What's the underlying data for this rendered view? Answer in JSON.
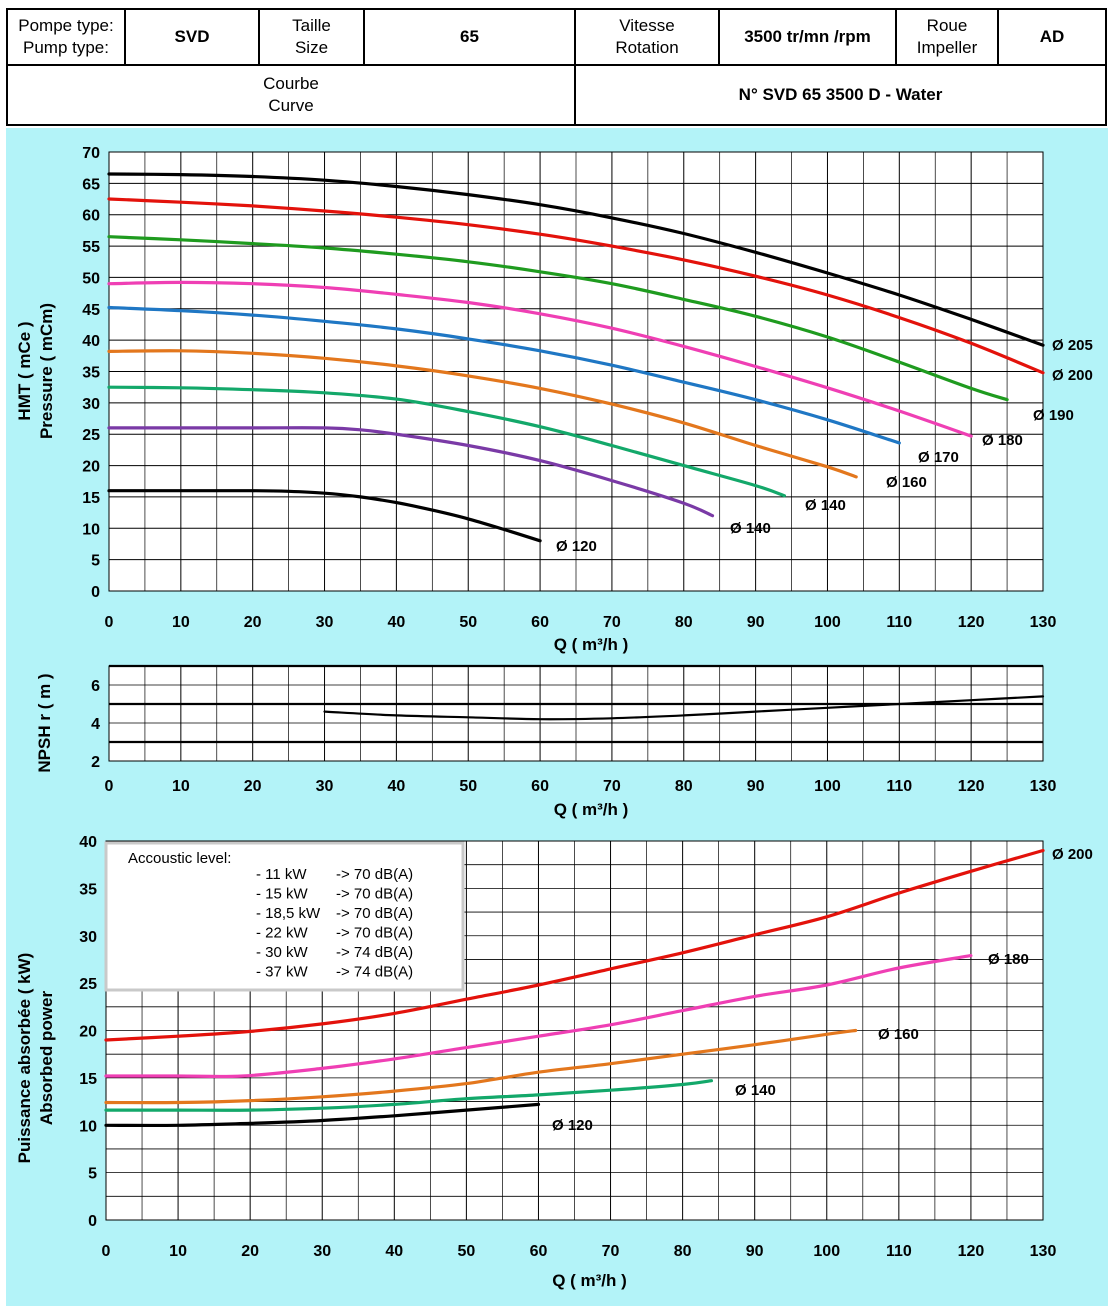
{
  "header": {
    "pump_type_label_fr": "Pompe type:",
    "pump_type_label_en": "Pump type:",
    "pump_type_value": "SVD",
    "size_label_fr": "Taille",
    "size_label_en": "Size",
    "size_value": "65",
    "speed_label_fr": "Vitesse",
    "speed_label_en": "Rotation",
    "speed_value": "3500 tr/mn /rpm",
    "impeller_label_fr": "Roue",
    "impeller_label_en": "Impeller",
    "impeller_value": "AD",
    "curve_label_fr": "Courbe",
    "curve_label_en": "Curve",
    "curve_number": "N° SVD 65 3500 D - Water"
  },
  "colors": {
    "panel_bg": "#b3f3f8",
    "black": "#000000",
    "red": "#e3120b",
    "green": "#1f9b1f",
    "pink": "#ef3fb4",
    "blue": "#1f77c4",
    "orange": "#e3771d",
    "teal_green": "#13a86a",
    "purple": "#7a3aa6"
  },
  "chart_data": [
    {
      "type": "line",
      "ylabel": "HMT ( mCe )",
      "ylabel2": "Pressure ( mCm)",
      "xlabel": "Q ( m³/h )",
      "xlim": [
        0,
        130
      ],
      "ylim": [
        0,
        70
      ],
      "xticks": [
        0,
        10,
        20,
        30,
        40,
        50,
        60,
        70,
        80,
        90,
        100,
        110,
        120,
        130
      ],
      "yticks": [
        0,
        5,
        10,
        15,
        20,
        25,
        30,
        35,
        40,
        45,
        50,
        55,
        60,
        65,
        70
      ],
      "grid": true,
      "series": [
        {
          "name": "Ø 205",
          "color": "black",
          "x": [
            0,
            10,
            20,
            30,
            40,
            50,
            60,
            70,
            80,
            90,
            100,
            110,
            120,
            130
          ],
          "y": [
            66.5,
            66.4,
            66.1,
            65.5,
            64.5,
            63.2,
            61.6,
            59.5,
            57.0,
            54.0,
            50.7,
            47.2,
            43.3,
            39.2
          ]
        },
        {
          "name": "Ø 200",
          "color": "red",
          "x": [
            0,
            10,
            20,
            30,
            40,
            50,
            60,
            70,
            80,
            90,
            100,
            110,
            120,
            130
          ],
          "y": [
            62.5,
            62.0,
            61.4,
            60.6,
            59.6,
            58.4,
            56.9,
            55.0,
            52.8,
            50.2,
            47.2,
            43.6,
            39.5,
            34.8
          ]
        },
        {
          "name": "Ø 190",
          "color": "green",
          "x": [
            0,
            10,
            20,
            30,
            40,
            50,
            60,
            70,
            80,
            90,
            100,
            110,
            120,
            125
          ],
          "y": [
            56.5,
            56.0,
            55.4,
            54.7,
            53.7,
            52.5,
            50.9,
            49.0,
            46.5,
            43.8,
            40.5,
            36.5,
            32.3,
            30.5
          ]
        },
        {
          "name": "Ø 180",
          "color": "pink",
          "x": [
            0,
            10,
            20,
            30,
            40,
            50,
            60,
            70,
            80,
            90,
            100,
            110,
            120
          ],
          "y": [
            49.0,
            49.2,
            49.0,
            48.4,
            47.3,
            46.0,
            44.2,
            41.9,
            39.0,
            35.8,
            32.4,
            28.7,
            24.7
          ]
        },
        {
          "name": "Ø 170",
          "color": "blue",
          "x": [
            0,
            10,
            20,
            30,
            40,
            50,
            60,
            70,
            80,
            90,
            100,
            110
          ],
          "y": [
            45.2,
            44.7,
            44.0,
            43.0,
            41.8,
            40.2,
            38.3,
            36.0,
            33.3,
            30.5,
            27.3,
            23.6
          ]
        },
        {
          "name": "Ø 160",
          "color": "orange",
          "x": [
            0,
            10,
            20,
            30,
            40,
            50,
            60,
            70,
            80,
            90,
            100,
            104
          ],
          "y": [
            38.2,
            38.3,
            37.9,
            37.1,
            35.9,
            34.3,
            32.3,
            29.8,
            26.8,
            23.2,
            19.8,
            18.2
          ]
        },
        {
          "name": "Ø 140",
          "color": "teal_green",
          "x": [
            0,
            10,
            20,
            30,
            40,
            50,
            60,
            70,
            80,
            90,
            94
          ],
          "y": [
            32.5,
            32.4,
            32.1,
            31.6,
            30.6,
            28.6,
            26.2,
            23.2,
            20.0,
            16.8,
            15.2
          ]
        },
        {
          "name": "Ø 140",
          "color": "purple",
          "x": [
            0,
            10,
            20,
            30,
            35,
            40,
            50,
            60,
            70,
            80,
            84
          ],
          "y": [
            26.0,
            26.0,
            26.0,
            26.0,
            25.7,
            25.0,
            23.2,
            20.8,
            17.6,
            14.0,
            12.0
          ]
        },
        {
          "name": "Ø 120",
          "color": "black",
          "x": [
            0,
            10,
            20,
            25,
            30,
            35,
            40,
            45,
            50,
            55,
            60
          ],
          "y": [
            16.0,
            16.0,
            16.0,
            15.9,
            15.6,
            15.0,
            14.1,
            12.9,
            11.5,
            9.8,
            8.0
          ]
        }
      ]
    },
    {
      "type": "line",
      "ylabel": "NPSH r ( m )",
      "xlabel": "Q ( m³/h )",
      "xlim": [
        0,
        130
      ],
      "ylim": [
        2,
        7
      ],
      "xticks": [
        0,
        10,
        20,
        30,
        40,
        50,
        60,
        70,
        80,
        90,
        100,
        110,
        120,
        130
      ],
      "yticks": [
        2,
        4,
        6
      ],
      "grid": true,
      "series": [
        {
          "color": "black",
          "x": [
            30,
            40,
            50,
            60,
            70,
            80,
            90,
            100,
            110,
            120,
            130
          ],
          "y": [
            4.6,
            4.4,
            4.3,
            4.2,
            4.25,
            4.4,
            4.6,
            4.8,
            5.0,
            5.2,
            5.4
          ]
        }
      ]
    },
    {
      "type": "line",
      "ylabel": "Puissance absorbée ( kW)",
      "ylabel2": "Absorbed power",
      "xlabel": "Q ( m³/h )",
      "xlim": [
        0,
        130
      ],
      "ylim": [
        0,
        40
      ],
      "xticks": [
        0,
        10,
        20,
        30,
        40,
        50,
        60,
        70,
        80,
        90,
        100,
        110,
        120,
        130
      ],
      "yticks": [
        0,
        5,
        10,
        15,
        20,
        25,
        30,
        35,
        40
      ],
      "grid": true,
      "annotation": {
        "title": "Accoustic level:",
        "lines": [
          {
            "power": "- 11 kW",
            "level": "-> 70 dB(A)"
          },
          {
            "power": "- 15 kW",
            "level": "-> 70 dB(A)"
          },
          {
            "power": "- 18,5 kW",
            "level": "-> 70 dB(A)"
          },
          {
            "power": "- 22 kW",
            "level": "-> 70 dB(A)"
          },
          {
            "power": "- 30 kW",
            "level": "-> 74 dB(A)"
          },
          {
            "power": "- 37 kW",
            "level": "-> 74 dB(A)"
          }
        ]
      },
      "series": [
        {
          "name": "Ø 200",
          "color": "red",
          "x": [
            0,
            10,
            20,
            30,
            40,
            50,
            60,
            70,
            80,
            90,
            100,
            110,
            120,
            130
          ],
          "y": [
            19.0,
            19.4,
            19.9,
            20.7,
            21.8,
            23.3,
            24.8,
            26.5,
            28.2,
            30.1,
            32.0,
            34.5,
            36.8,
            39.0
          ]
        },
        {
          "name": "Ø 180",
          "color": "pink",
          "x": [
            0,
            10,
            19,
            30,
            40,
            50,
            60,
            70,
            80,
            90,
            100,
            110,
            120
          ],
          "y": [
            15.2,
            15.2,
            15.2,
            16.0,
            17.0,
            18.2,
            19.4,
            20.6,
            22.1,
            23.6,
            24.8,
            26.6,
            27.9
          ]
        },
        {
          "name": "Ø 160",
          "color": "orange",
          "x": [
            0,
            10,
            20,
            30,
            40,
            50,
            60,
            70,
            80,
            90,
            100,
            104
          ],
          "y": [
            12.4,
            12.4,
            12.6,
            13.0,
            13.6,
            14.4,
            15.6,
            16.5,
            17.5,
            18.5,
            19.6,
            20.0
          ]
        },
        {
          "name": "Ø 140",
          "color": "teal_green",
          "x": [
            0,
            10,
            20,
            30,
            40,
            50,
            60,
            70,
            80,
            84
          ],
          "y": [
            11.6,
            11.6,
            11.6,
            11.8,
            12.2,
            12.8,
            13.2,
            13.7,
            14.3,
            14.7
          ]
        },
        {
          "name": "Ø 120",
          "color": "black",
          "x": [
            0,
            10,
            20,
            30,
            40,
            50,
            60
          ],
          "y": [
            10.0,
            10.0,
            10.2,
            10.5,
            11.0,
            11.6,
            12.2
          ]
        }
      ]
    }
  ]
}
